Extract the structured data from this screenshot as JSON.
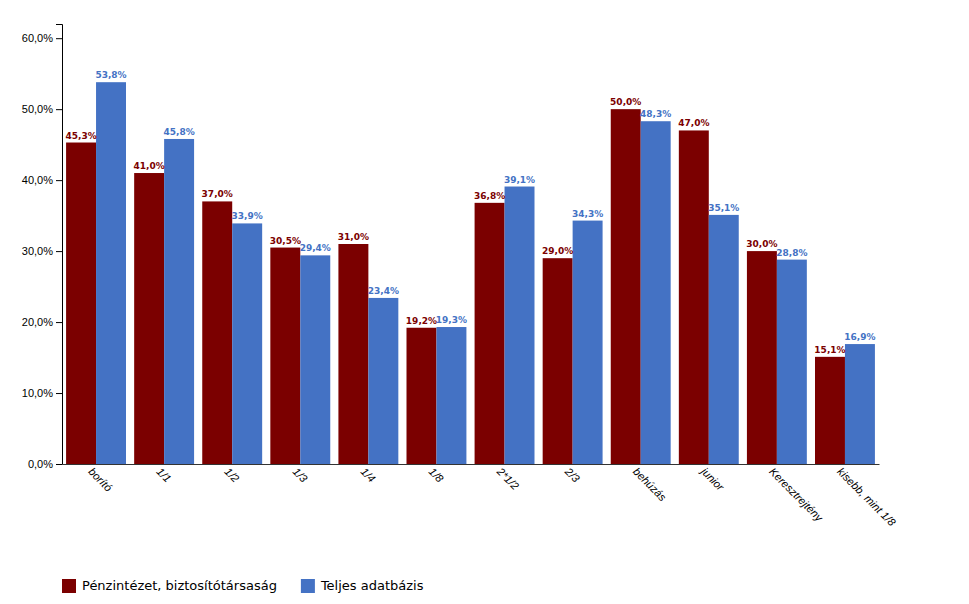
{
  "chart_data": {
    "type": "bar",
    "categories": [
      "borító",
      "1/1",
      "1/2",
      "1/3",
      "1/4",
      "1/8",
      "2*1/2",
      "2/3",
      "behúzás",
      "junior",
      "Keresztrejtény",
      "kisebb, mint 1/8"
    ],
    "series": [
      {
        "name": "Pénzintézet, biztosítótársaság",
        "color": "#7B0000",
        "values": [
          45.3,
          41.0,
          37.0,
          30.5,
          31.0,
          19.2,
          36.8,
          29.0,
          50.0,
          47.0,
          30.0,
          15.1
        ],
        "value_labels": [
          "45,3%",
          "41,0%",
          "37,0%",
          "30,5%",
          "31,0%",
          "19,2%",
          "36,8%",
          "29,0%",
          "50,0%",
          "47,0%",
          "30,0%",
          "15,1%"
        ]
      },
      {
        "name": "Teljes adatbázis",
        "color": "#4472C4",
        "values": [
          53.8,
          45.8,
          33.9,
          29.4,
          23.4,
          19.3,
          39.1,
          34.3,
          48.3,
          35.1,
          28.8,
          16.9
        ],
        "value_labels": [
          "53,8%",
          "45,8%",
          "33,9%",
          "29,4%",
          "23,4%",
          "19,3%",
          "39,1%",
          "34,3%",
          "48,3%",
          "35,1%",
          "28,8%",
          "16,9%"
        ]
      }
    ],
    "ylim": [
      0,
      62
    ],
    "yticks": [
      {
        "value": 0,
        "label": "0,0%"
      },
      {
        "value": 10,
        "label": "10,0%"
      },
      {
        "value": 20,
        "label": "20,0%"
      },
      {
        "value": 30,
        "label": "30,0%"
      },
      {
        "value": 40,
        "label": "40,0%"
      },
      {
        "value": 50,
        "label": "50,0%"
      },
      {
        "value": 60,
        "label": "60,0%"
      }
    ],
    "grid": false,
    "legend": "bottom-left",
    "data_labels": true
  }
}
